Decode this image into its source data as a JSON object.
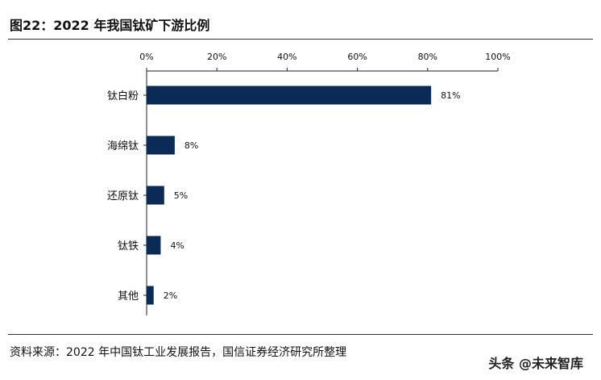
{
  "title": "图22：2022 年我国钛矿下游比例",
  "source": "资料来源：2022 年中国钛工业发展报告，国信证券经济研究所整理",
  "watermark": "头条 @未来智库",
  "chart_data": {
    "type": "bar",
    "orientation": "horizontal",
    "categories": [
      "钛白粉",
      "海绵钛",
      "还原钛",
      "钛铁",
      "其他"
    ],
    "values": [
      81,
      8,
      5,
      4,
      2
    ],
    "data_labels": [
      "81%",
      "8%",
      "5%",
      "4%",
      "2%"
    ],
    "xlim": [
      0,
      100
    ],
    "xticks": [
      0,
      20,
      40,
      60,
      80,
      100
    ],
    "xtick_labels": [
      "0%",
      "20%",
      "40%",
      "60%",
      "80%",
      "100%"
    ],
    "x_axis_position": "top",
    "grid": false,
    "bar_color": "#0b2a55"
  }
}
